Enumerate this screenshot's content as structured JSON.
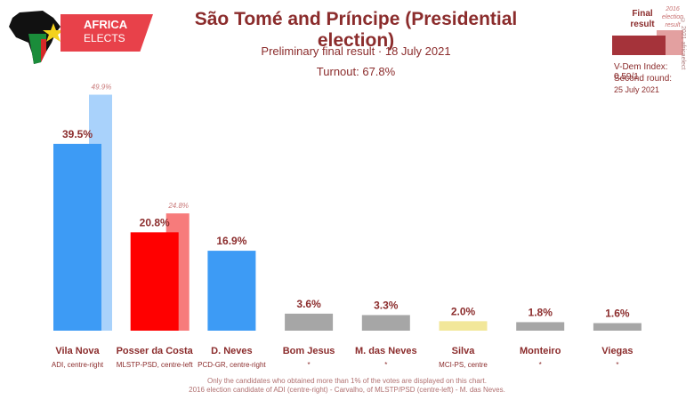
{
  "logo": {
    "line1": "AFRICA",
    "line2": "ELECTS"
  },
  "header": {
    "title": "São Tomé and Príncipe (Presidential election)",
    "subtitle": "Preliminary final result · 18 July 2021",
    "turnout": "Turnout: 67.8%"
  },
  "legend": {
    "final_label": "Final result",
    "prev_label": "2016 election result",
    "vdem": "V-Dem Index: 0.59/1",
    "second_round": "Second round:",
    "second_round_date": "25 July 2021"
  },
  "credit": "© 2021 africaelect",
  "footnote": {
    "line1": "Only the candidates who obtained more than 1% of the votes are displayed on this chart.",
    "line2": "2016 election candidate of ADI (centre-right) - Carvalho, of MLSTP/PSD (centre-left) - M. das Neves."
  },
  "chart_data": {
    "type": "bar",
    "categories": [
      "Vila Nova",
      "Posser da Costa",
      "D. Neves",
      "Bom Jesus",
      "M. das Neves",
      "Silva",
      "Monteiro",
      "Viegas"
    ],
    "parties": [
      "ADI, centre-right",
      "MLSTP-PSD, centre-left",
      "PCD-GR, centre-right",
      "*",
      "*",
      "MCI-PS, centre",
      "*",
      "*"
    ],
    "values": [
      39.5,
      20.8,
      16.9,
      3.6,
      3.3,
      2.0,
      1.8,
      1.6
    ],
    "value_labels": [
      "39.5%",
      "20.8%",
      "16.9%",
      "3.6%",
      "3.3%",
      "2.0%",
      "1.8%",
      "1.6%"
    ],
    "previous_values": [
      49.9,
      24.8,
      null,
      null,
      null,
      null,
      null,
      null
    ],
    "previous_labels": [
      "49.9%",
      "24.8%",
      "",
      "",
      "",
      "",
      "",
      ""
    ],
    "colors": [
      "#3d9bf5",
      "#ff0000",
      "#3d9bf5",
      "#a6a6a6",
      "#a6a6a6",
      "#f2e79a",
      "#a6a6a6",
      "#a6a6a6"
    ],
    "previous_colors": [
      "#a9d2fb",
      "#f77b7b",
      null,
      null,
      null,
      null,
      null,
      null
    ],
    "ylim": [
      0,
      50
    ],
    "grid": false
  }
}
